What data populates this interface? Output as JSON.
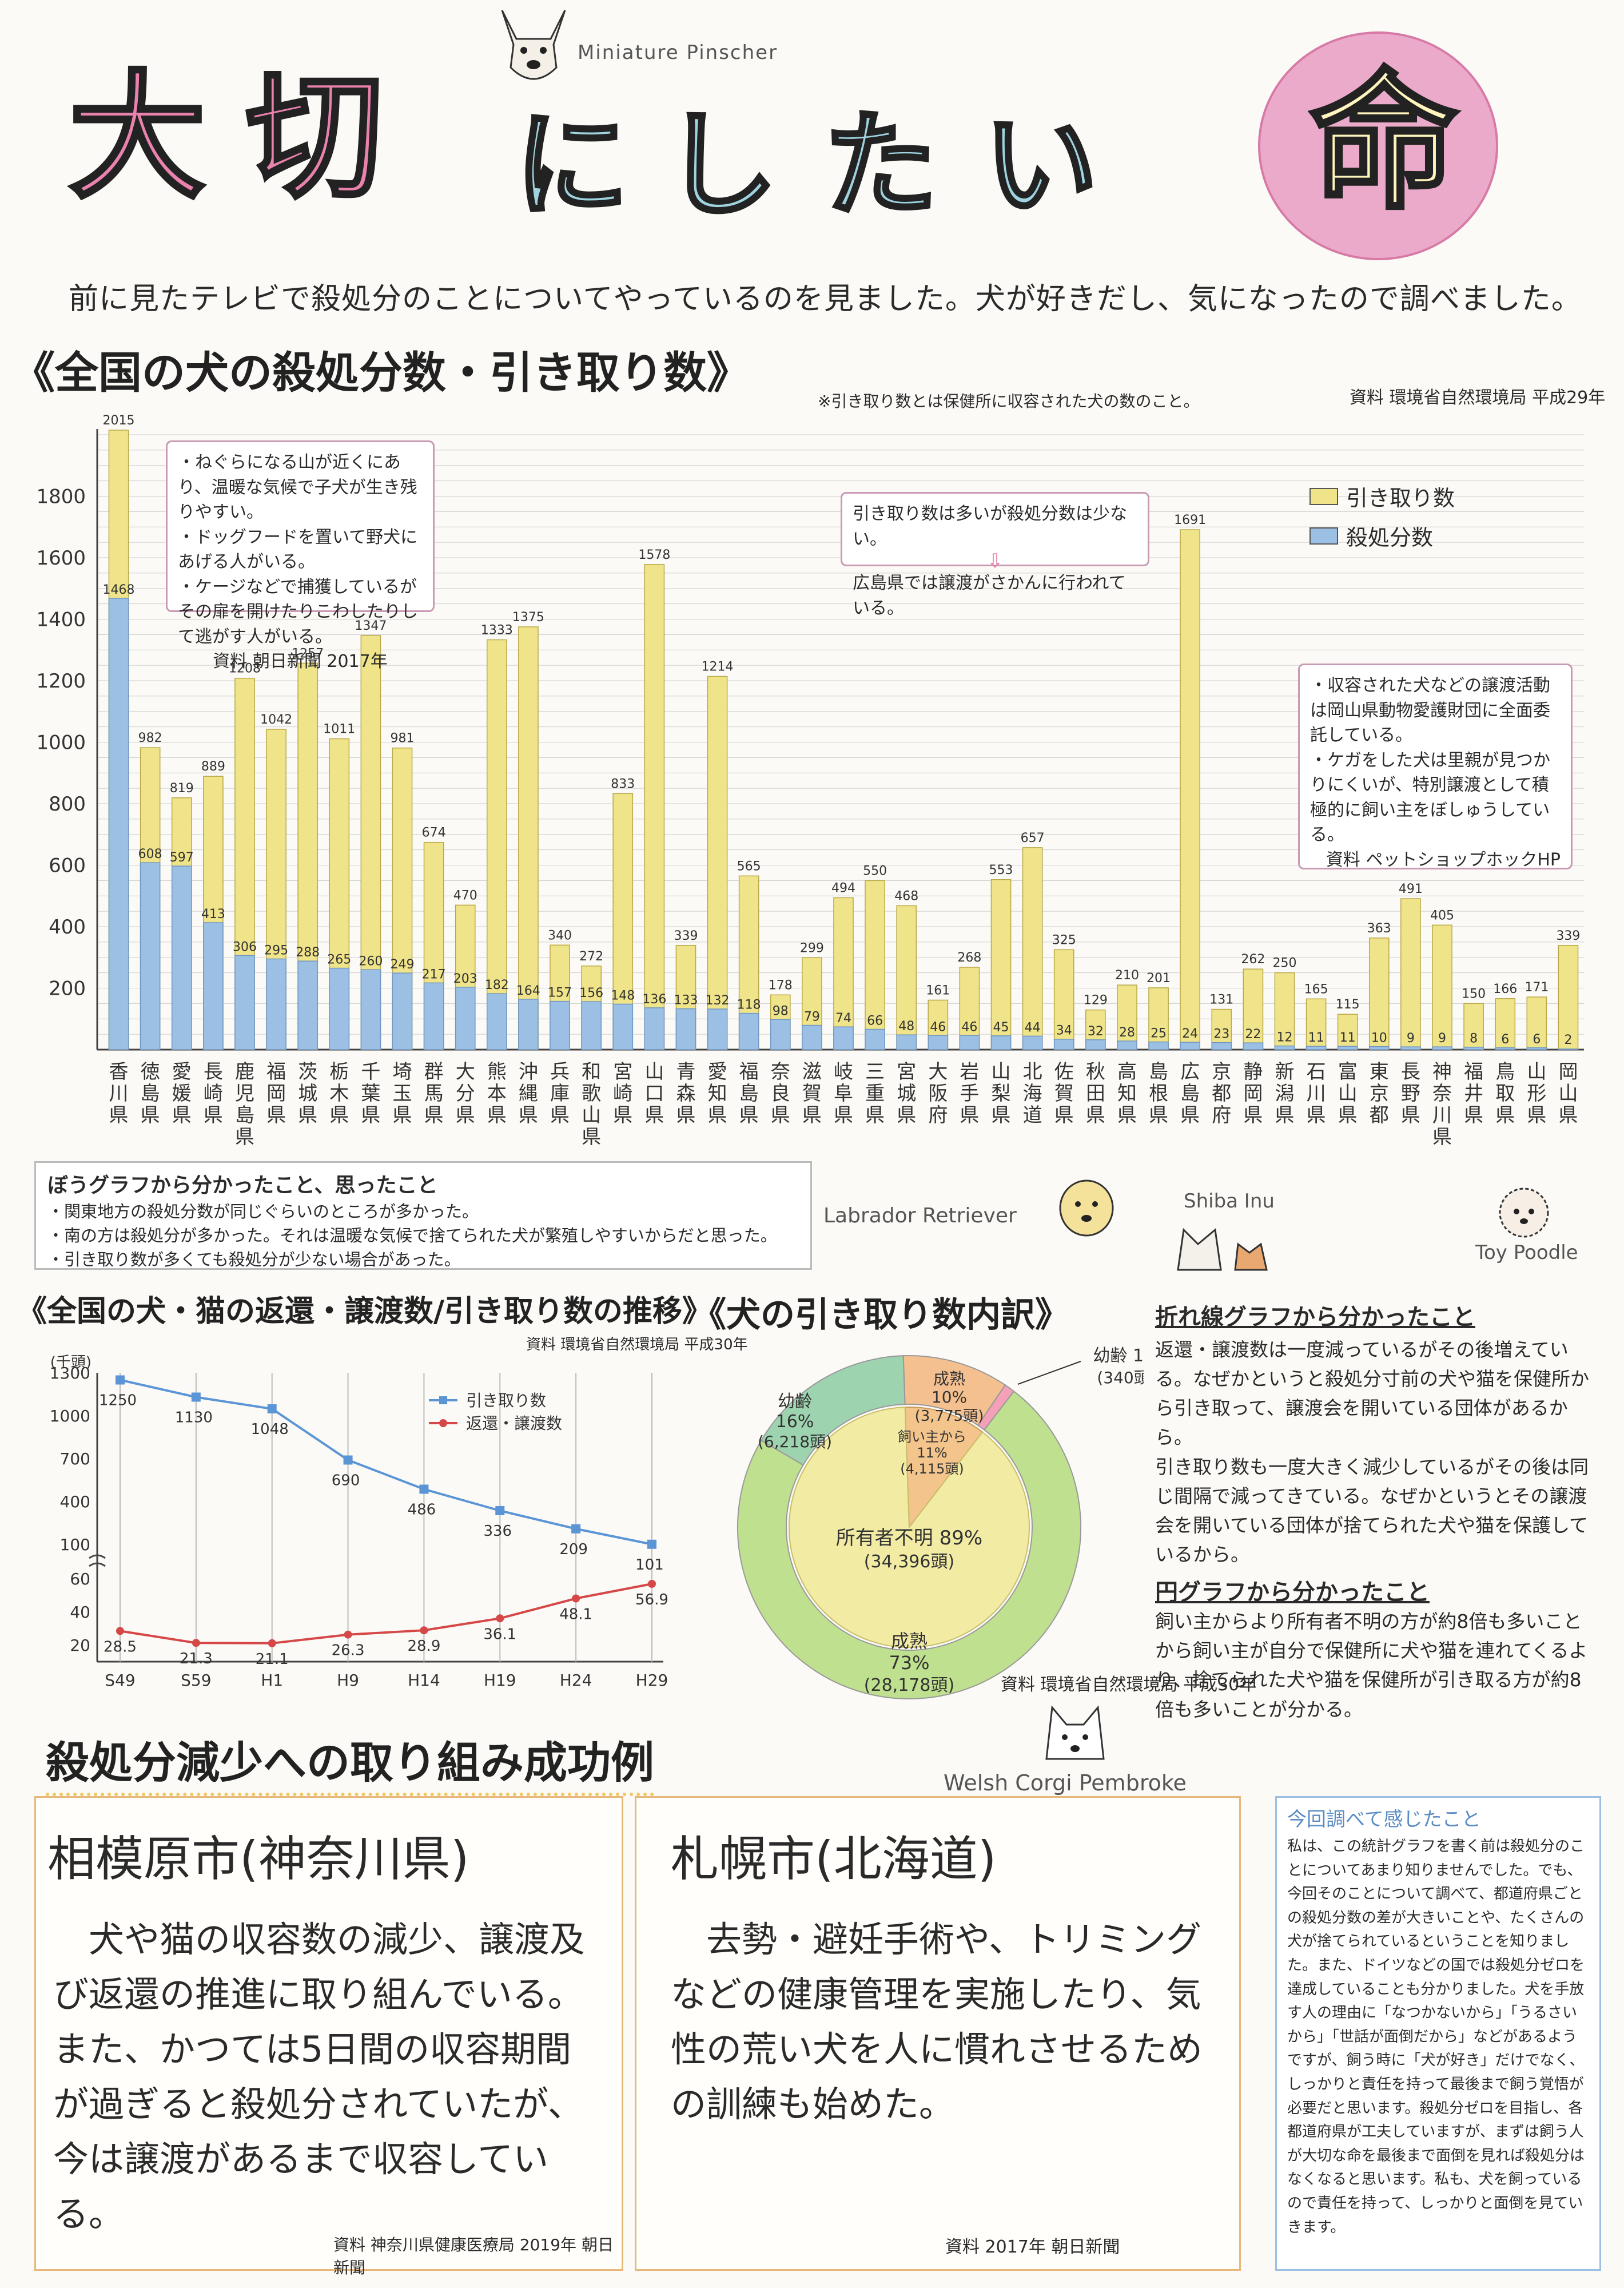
{
  "header": {
    "breed_top": "Miniature Pinscher",
    "title_chars": [
      "大",
      "切",
      "に",
      "し",
      "た",
      "い",
      "命"
    ],
    "intro": "前に見たテレビで殺処分のことについてやっているのを見ました。犬が好きだし、気になったので調べました。"
  },
  "section1": {
    "title": "《全国の犬の殺処分数・引き取り数》",
    "footnote": "※引き取り数とは保健所に収容された犬の数のこと。",
    "source": "資料 環境省自然環境局 平成29年",
    "note_left": [
      "・ねぐらになる山が近くにあり、温暖な気候で子犬が生き残りやすい。",
      "・ドッグフードを置いて野犬にあげる人がいる。",
      "・ケージなどで捕獲しているがその扉を開けたりこわしたりして逃がす人がいる。",
      "資料 朝日新聞 2017年"
    ],
    "note_center": [
      "引き取り数は多いが殺処分数は少ない。",
      "広島県では譲渡がさかんに行われている。"
    ],
    "note_right": [
      "・収容された犬などの譲渡活動は岡山県動物愛護財団に全面委託している。",
      "・ケガをした犬は里親が見つかりにくいが、特別譲渡として積極的に飼い主をぼしゅうしている。",
      "資料 ペットショップホックHP"
    ],
    "findings_title": "ぼうグラフから分かったこと、思ったこと",
    "findings": [
      "・関東地方の殺処分数が同じぐらいのところが多かった。",
      "・南の方は殺処分が多かった。それは温暖な気候で捨てられた犬が繁殖しやすいからだと思った。",
      "・引き取り数が多くても殺処分が少ない場合があった。"
    ]
  },
  "section2": {
    "title": "《全国の犬・猫の返還・譲渡数/引き取り数の推移》",
    "source": "資料 環境省自然環境局 平成30年"
  },
  "section3": {
    "title": "《犬の引き取り数内訳》",
    "source": "資料 環境省自然環境局 平成30年"
  },
  "right_notes": {
    "line_title": "折れ線グラフから分かったこと",
    "line_text": [
      "返還・譲渡数は一度減っているがその後増えている。なぜかというと殺処分寸前の犬や猫を保健所から引き取って、譲渡会を開いている団体があるから。",
      "引き取り数も一度大きく減少しているがその後は同じ間隔で減ってきている。なぜかというとその譲渡会を開いている団体が捨てられた犬や猫を保護しているから。"
    ],
    "pie_title": "円グラフから分かったこと",
    "pie_text": "飼い主からより所有者不明の方が約8倍も多いことから飼い主が自分で保健所に犬や猫を連れてくるより、捨てられた犬や猫を保健所が引き取る方が約8倍も多いことが分かる。"
  },
  "examples": {
    "title": "殺処分減少への取り組み成功例",
    "sagamihara": {
      "name": "相模原市(神奈川県)",
      "text": "犬や猫の収容数の減少、譲渡及び返還の推進に取り組んでいる。また、かつては5日間の収容期間が過ぎると殺処分されていたが、今は譲渡があるまで収容している。",
      "source": "資料 神奈川県健康医療局 2019年 朝日新聞"
    },
    "sapporo": {
      "name": "札幌市(北海道)",
      "text": "去勢・避妊手術や、トリミングなどの健康管理を実施したり、気性の荒い犬を人に慣れさせるための訓練も始めた。",
      "source": "資料 2017年 朝日新聞"
    },
    "impression_title": "今回調べて感じたこと",
    "impression": "私は、この統計グラフを書く前は殺処分のことについてあまり知りませんでした。でも、今回そのことについて調べて、都道府県ごとの殺処分数の差が大きいことや、たくさんの犬が捨てられているということを知りました。また、ドイツなどの国では殺処分ゼロを達成していることも分かりました。犬を手放す人の理由に「なつかないから」「うるさいから」「世話が面倒だから」などがあるようですが、飼う時に「犬が好き」だけでなく、しっかりと責任を持って最後まで飼う覚悟が必要だと思います。殺処分ゼロを目指し、各都道府県が工夫していますが、まずは飼う人が大切な命を最後まで面倒を見れば殺処分はなくなると思います。私も、犬を飼っているので責任を持って、しっかりと面倒を見ていきます。"
  },
  "dog_labels": {
    "lab": "Labrador Retriever",
    "shiba": "Shiba Inu",
    "poodle": "Toy Poodle",
    "corgi": "Welsh Corgi Pembroke"
  },
  "colors": {
    "intake": "#f0e48a",
    "kill": "#9cc0e4",
    "pink": "#e87aa6",
    "blue_text": "#9fd3e0"
  },
  "chart_data": [
    {
      "type": "bar",
      "title": "全国の犬の殺処分数・引き取り数",
      "categories": [
        "香川県",
        "徳島県",
        "愛媛県",
        "長崎県",
        "鹿児島県",
        "福岡県",
        "茨城県",
        "栃木県",
        "千葉県",
        "埼玉県",
        "群馬県",
        "大分県",
        "熊本県",
        "沖縄県",
        "兵庫県",
        "和歌山県",
        "宮崎県",
        "山口県",
        "青森県",
        "愛知県",
        "福島県",
        "奈良県",
        "滋賀県",
        "岐阜県",
        "三重県",
        "宮城県",
        "大阪府",
        "岩手県",
        "山梨県",
        "北海道",
        "佐賀県",
        "秋田県",
        "高知県",
        "島根県",
        "広島県",
        "京都府",
        "静岡県",
        "新潟県",
        "石川県",
        "富山県",
        "東京都",
        "長野県",
        "神奈川県",
        "福井県",
        "鳥取県",
        "山形県",
        "岡山県"
      ],
      "series": [
        {
          "name": "引き取り数",
          "values": [
            2015,
            982,
            819,
            889,
            1208,
            1042,
            1257,
            1011,
            1347,
            981,
            674,
            470,
            1333,
            1375,
            340,
            272,
            833,
            1578,
            339,
            1214,
            565,
            178,
            299,
            494,
            550,
            468,
            161,
            268,
            553,
            657,
            325,
            129,
            210,
            201,
            1691,
            131,
            262,
            250,
            165,
            115,
            363,
            491,
            405,
            150,
            166,
            171,
            339
          ]
        },
        {
          "name": "殺処分数",
          "values": [
            1468,
            608,
            597,
            413,
            306,
            295,
            288,
            265,
            260,
            249,
            217,
            203,
            182,
            164,
            157,
            156,
            148,
            136,
            133,
            132,
            118,
            98,
            79,
            74,
            66,
            48,
            46,
            46,
            45,
            44,
            34,
            32,
            28,
            25,
            24,
            23,
            22,
            12,
            11,
            11,
            10,
            9,
            9,
            8,
            6,
            6,
            2
          ]
        }
      ],
      "ylim": [
        0,
        2000
      ],
      "yticks": [
        200,
        400,
        600,
        800,
        1000,
        1200,
        1400,
        1600,
        1800
      ]
    },
    {
      "type": "line",
      "title": "全国の犬・猫の返還・譲渡数/引き取り数の推移",
      "ylabel": "(千頭)",
      "x": [
        "S49",
        "S59",
        "H1",
        "H9",
        "H14",
        "H19",
        "H24",
        "H29"
      ],
      "series": [
        {
          "name": "引き取り数",
          "values": [
            1250,
            1130,
            1048,
            690,
            486,
            336,
            209,
            101
          ]
        },
        {
          "name": "返還・譲渡数",
          "values": [
            28.5,
            21.3,
            21.1,
            26.3,
            28.9,
            36.1,
            48.1,
            56.9
          ]
        }
      ],
      "yticks": [
        "1300",
        "1000",
        "700",
        "400",
        "100",
        "60",
        "40",
        "20"
      ]
    },
    {
      "type": "pie",
      "title": "犬の引き取り数内訳",
      "slices": [
        {
          "label": "所有者不明",
          "percent": 89,
          "count": "34,396頭",
          "ring": "inner"
        },
        {
          "label": "飼い主から",
          "percent": 11,
          "count": "4,115頭",
          "ring": "inner"
        },
        {
          "label": "成熟",
          "percent": 73,
          "count": "28,178頭",
          "ring": "outer"
        },
        {
          "label": "幼齢",
          "percent": 16,
          "count": "6,218頭",
          "ring": "outer"
        },
        {
          "label": "成熟",
          "percent": 10,
          "count": "3,775頭",
          "ring": "outer"
        },
        {
          "label": "幼齢",
          "percent": 1,
          "count": "340頭",
          "ring": "outer"
        }
      ]
    }
  ]
}
